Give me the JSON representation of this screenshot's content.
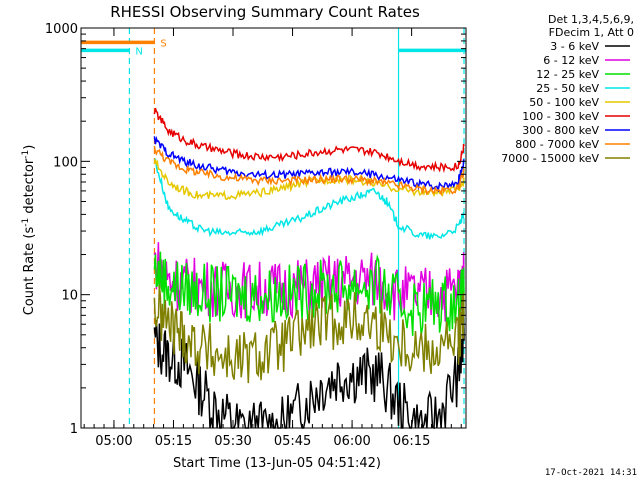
{
  "chart_data": {
    "type": "line",
    "title": "RHESSI Observing Summary Count Rates",
    "xlabel": "Start Time (13-Jun-05 04:51:42)",
    "ylabel_main": "Count Rate (s",
    "ylabel_sup1": "-1",
    "ylabel_mid": " detector",
    "ylabel_sup2": "-1",
    "ylabel_end": ")",
    "x_units": "minutes since 04:51:42",
    "xlim": [
      0,
      97
    ],
    "ylim": [
      1,
      1000
    ],
    "yscale": "log",
    "x_ticks": [
      {
        "label": "05:00",
        "value": 8.3
      },
      {
        "label": "05:15",
        "value": 23.3
      },
      {
        "label": "05:30",
        "value": 38.3
      },
      {
        "label": "05:45",
        "value": 53.3
      },
      {
        "label": "06:00",
        "value": 68.3
      },
      {
        "label": "06:15",
        "value": 83.3
      },
      {
        "label": "06:30",
        "value": 98.3
      }
    ],
    "y_ticks": [
      {
        "label": "1",
        "value": 1
      },
      {
        "label": "10",
        "value": 10
      },
      {
        "label": "100",
        "value": 100
      },
      {
        "label": "1000",
        "value": 1000
      }
    ],
    "legend_header": [
      "Det 1,3,4,5,6,9,",
      "FDecim 1, Att 0"
    ],
    "series": [
      {
        "name": "3 - 6 keV",
        "color": "#000000",
        "x": [
          18.5,
          22,
          26,
          30,
          35,
          40,
          45,
          50,
          55,
          60,
          65,
          70,
          75,
          80,
          85,
          90,
          95,
          96.5
        ],
        "values": [
          4.5,
          3.5,
          3,
          2,
          1.3,
          1,
          1,
          1,
          1.4,
          2,
          2.5,
          2.5,
          2.5,
          1.5,
          1,
          1.2,
          2.5,
          4.5
        ]
      },
      {
        "name": "6 - 12 keV",
        "color": "#e000e0",
        "x": [
          18.5,
          22,
          26,
          30,
          35,
          40,
          45,
          50,
          55,
          60,
          65,
          70,
          75,
          80,
          85,
          90,
          95,
          96.5
        ],
        "values": [
          18,
          13,
          12,
          11.5,
          11,
          11,
          11,
          11,
          11.5,
          12,
          12.5,
          13,
          13,
          10,
          10,
          10,
          11,
          13
        ]
      },
      {
        "name": "12 - 25 keV",
        "color": "#00e000",
        "x": [
          18.5,
          22,
          26,
          30,
          35,
          40,
          45,
          50,
          55,
          60,
          65,
          70,
          75,
          80,
          85,
          90,
          95,
          96.5
        ],
        "values": [
          16,
          12,
          11,
          10.5,
          10,
          10,
          10,
          10,
          10.5,
          11,
          11.5,
          12,
          11.5,
          8.5,
          8,
          8.5,
          9,
          10
        ]
      },
      {
        "name": "25 - 50 keV",
        "color": "#00e6e6",
        "x": [
          18.5,
          22,
          26,
          30,
          35,
          40,
          45,
          50,
          55,
          60,
          65,
          70,
          74,
          77,
          80,
          85,
          90,
          95,
          96.5
        ],
        "values": [
          105,
          45,
          36,
          31,
          29,
          29,
          30,
          33,
          37,
          43,
          50,
          55,
          60,
          50,
          33,
          28,
          27,
          32,
          40
        ]
      },
      {
        "name": "50 - 100 keV",
        "color": "#e6c800",
        "x": [
          18.5,
          22,
          26,
          30,
          35,
          40,
          45,
          50,
          55,
          60,
          65,
          70,
          75,
          80,
          85,
          90,
          95,
          96.5
        ],
        "values": [
          100,
          70,
          60,
          55,
          55,
          56,
          58,
          62,
          68,
          72,
          74,
          72,
          67,
          62,
          59,
          58,
          62,
          72
        ]
      },
      {
        "name": "100 - 300 keV",
        "color": "#e60000",
        "x": [
          18.5,
          22,
          26,
          30,
          35,
          40,
          45,
          50,
          55,
          60,
          65,
          70,
          75,
          80,
          85,
          90,
          95,
          96.5
        ],
        "values": [
          240,
          170,
          145,
          130,
          120,
          112,
          108,
          108,
          112,
          118,
          122,
          121,
          115,
          102,
          93,
          90,
          92,
          130
        ]
      },
      {
        "name": "300 - 800 keV",
        "color": "#0000ff",
        "x": [
          18.5,
          22,
          26,
          30,
          35,
          40,
          45,
          50,
          55,
          60,
          65,
          70,
          75,
          80,
          85,
          90,
          95,
          96.5
        ],
        "values": [
          145,
          115,
          100,
          92,
          86,
          82,
          79,
          79,
          80,
          82,
          83,
          82,
          78,
          72,
          68,
          65,
          70,
          100
        ]
      },
      {
        "name": "800 - 7000 keV",
        "color": "#ff8000",
        "x": [
          18.5,
          22,
          26,
          30,
          35,
          40,
          45,
          50,
          55,
          60,
          65,
          70,
          75,
          80,
          85,
          90,
          95,
          96.5
        ],
        "values": [
          125,
          100,
          88,
          82,
          77,
          74,
          72,
          72,
          72,
          73,
          74,
          73,
          70,
          66,
          62,
          60,
          62,
          85
        ]
      },
      {
        "name": "7000 - 15000 keV",
        "color": "#808000",
        "x": [
          18.5,
          22,
          26,
          30,
          35,
          40,
          45,
          50,
          55,
          60,
          65,
          70,
          75,
          80,
          85,
          90,
          95,
          96.5
        ],
        "values": [
          8,
          6,
          5,
          4,
          3.5,
          3.2,
          3.5,
          4,
          5,
          6,
          6.5,
          6.5,
          6,
          4.5,
          4,
          4,
          4.5,
          7
        ]
      }
    ],
    "status_bars": [
      {
        "label": "S",
        "color": "#ff8000",
        "x_start": 0,
        "x_end": 18.5,
        "y_level": 780,
        "line": "solid"
      },
      {
        "label": "N",
        "color": "#00e6e6",
        "x_start": 0,
        "x_end": 12.2,
        "y_level": 680,
        "line": "solid"
      },
      {
        "label": "",
        "color": "#00e6e6",
        "x_start": 80,
        "x_end": 97,
        "y_level": 680,
        "line": "solid"
      }
    ],
    "vlines": [
      {
        "x": 12.2,
        "color": "#00e6e6",
        "dash": true
      },
      {
        "x": 18.5,
        "color": "#ff8000",
        "dash": true
      },
      {
        "x": 80,
        "color": "#00e6e6",
        "dash": false
      },
      {
        "x": 96.5,
        "color": "#00e6e6",
        "dash": true
      }
    ],
    "grid": false,
    "legend_position": "right"
  },
  "footer": {
    "timestamp": "17-Oct-2021 14:31"
  }
}
